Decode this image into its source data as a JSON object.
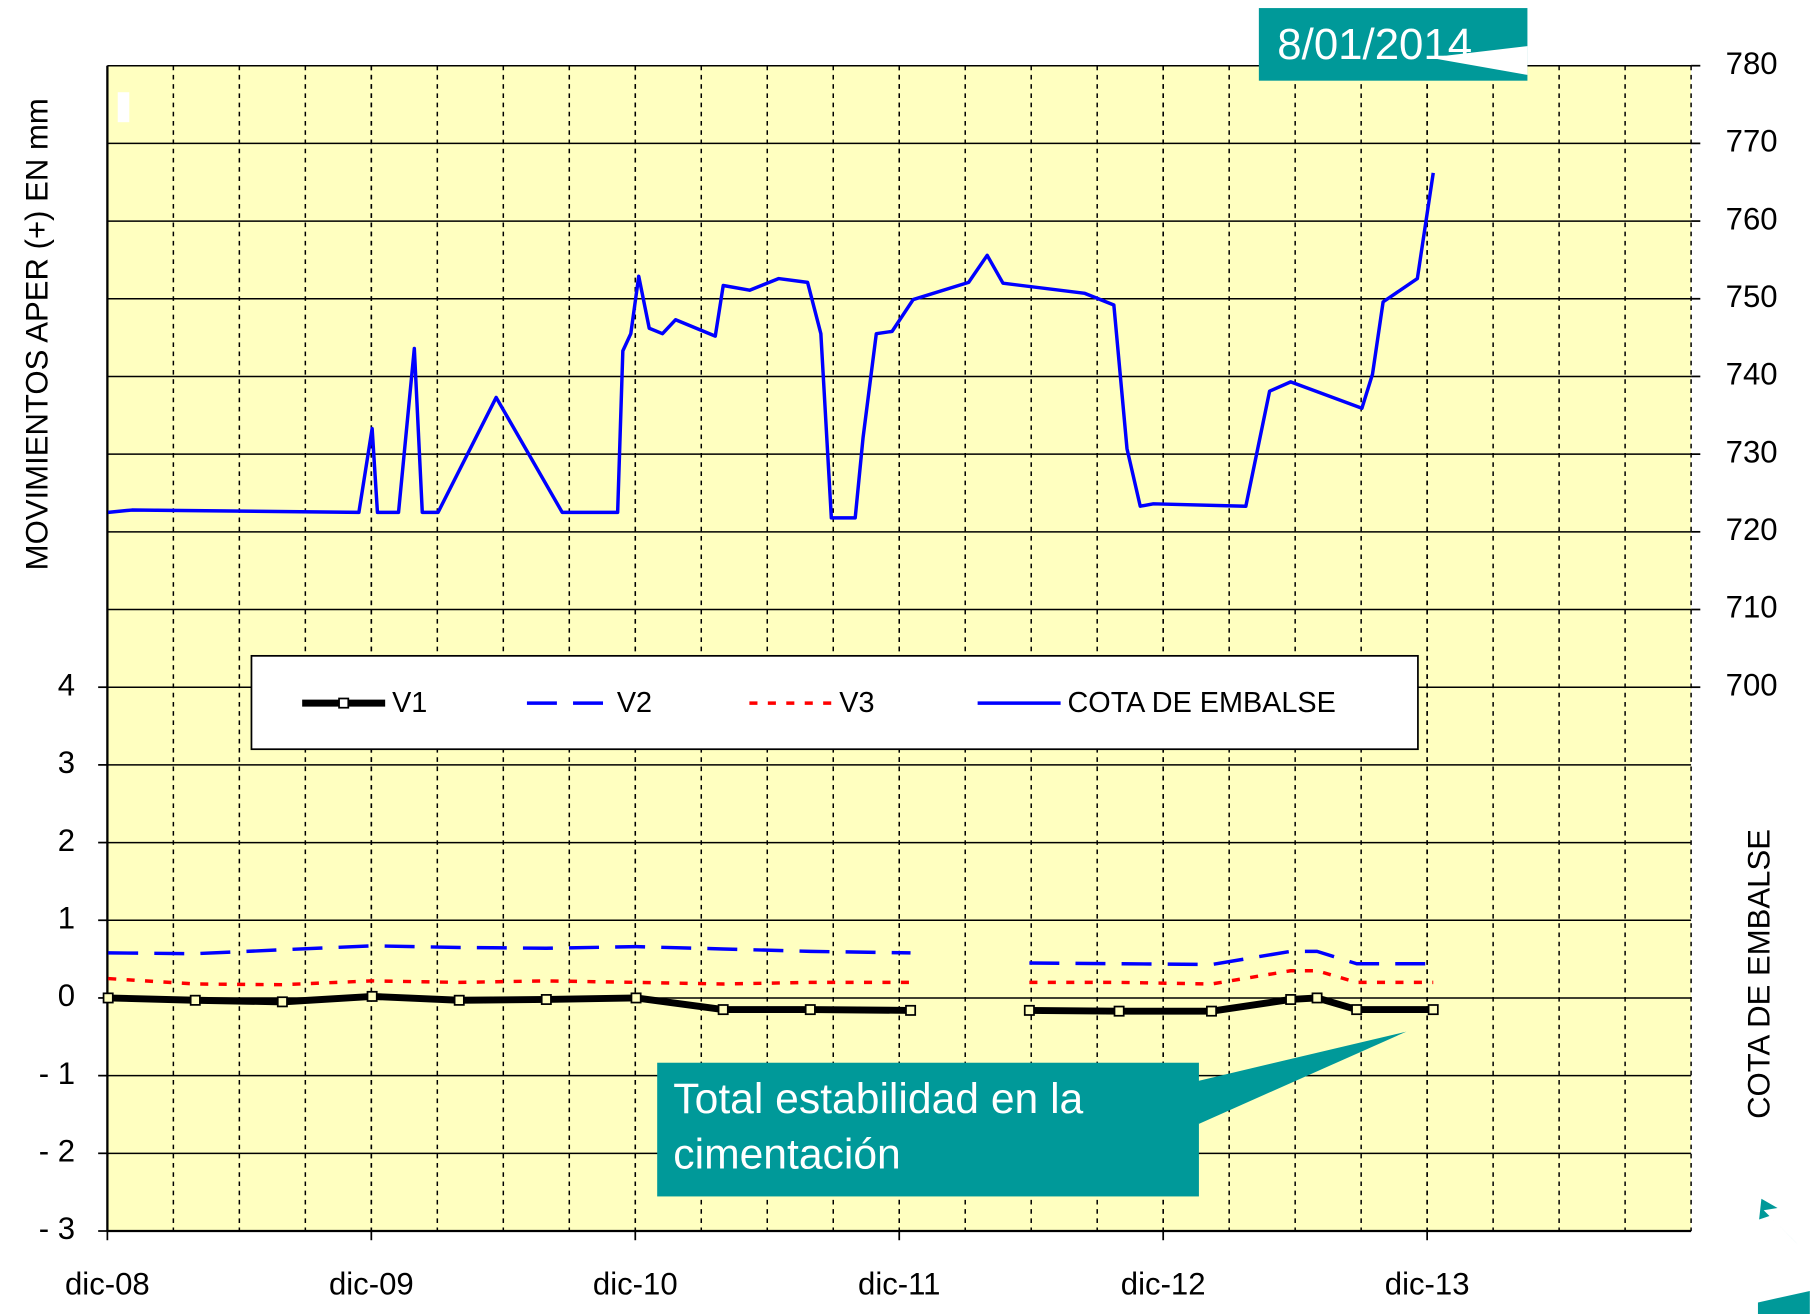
{
  "chart_data": {
    "type": "line",
    "y_label": "MOVIMIENTOS APER (+) EN mm",
    "y2_label": "COTA DE EMBALSE",
    "xlim": [
      2008.917,
      2014.917
    ],
    "xticks": [
      {
        "value": 2008.917,
        "label": "dic-08"
      },
      {
        "value": 2009.917,
        "label": "dic-09"
      },
      {
        "value": 2010.917,
        "label": "dic-10"
      },
      {
        "value": 2011.917,
        "label": "dic-11"
      },
      {
        "value": 2012.917,
        "label": "dic-12"
      },
      {
        "value": 2013.917,
        "label": "dic-13"
      }
    ],
    "minor_grid_step": 0.25,
    "ylim": [
      -3,
      12
    ],
    "yticks": [
      {
        "value": -3,
        "label": "- 3"
      },
      {
        "value": -2,
        "label": "- 2"
      },
      {
        "value": -1,
        "label": "- 1"
      },
      0,
      1,
      2,
      3,
      4
    ],
    "y2lim": [
      630,
      780
    ],
    "y2ticks": [
      700,
      710,
      720,
      730,
      740,
      750,
      760,
      770,
      780
    ],
    "grid": true,
    "plot_background": "#ffffc0",
    "legend": "inside",
    "series": [
      {
        "name": "V1",
        "color": "#000000",
        "dash": "solid",
        "width": 6,
        "marker": "square",
        "axis": "y",
        "x": [
          2008.92,
          2009.25,
          2009.58,
          2009.92,
          2010.25,
          2010.58,
          2010.92,
          2011.25,
          2011.58,
          2011.96,
          2012.2,
          2012.41,
          2012.75,
          2013.1,
          2013.4,
          2013.5,
          2013.65,
          2013.94
        ],
        "values": [
          0,
          -0.03,
          -0.05,
          0.02,
          -0.03,
          -0.02,
          0,
          -0.15,
          -0.15,
          -0.16,
          null,
          -0.16,
          -0.17,
          -0.17,
          -0.02,
          0,
          -0.15,
          -0.15
        ]
      },
      {
        "name": "V2",
        "color": "#0000ff",
        "dash": "dashed",
        "width": 3,
        "axis": "y",
        "x": [
          2008.92,
          2009.25,
          2009.58,
          2009.92,
          2010.25,
          2010.58,
          2010.92,
          2011.25,
          2011.58,
          2011.96,
          2012.2,
          2012.41,
          2012.75,
          2013.1,
          2013.4,
          2013.5,
          2013.65,
          2013.94
        ],
        "values": [
          0.58,
          0.57,
          0.62,
          0.67,
          0.65,
          0.64,
          0.66,
          0.63,
          0.6,
          0.58,
          null,
          0.45,
          0.44,
          0.43,
          0.6,
          0.6,
          0.44,
          0.44
        ]
      },
      {
        "name": "V3",
        "color": "#ff0000",
        "dash": "dotted",
        "width": 3,
        "axis": "y",
        "x": [
          2008.92,
          2009.25,
          2009.58,
          2009.92,
          2010.25,
          2010.58,
          2010.92,
          2011.25,
          2011.58,
          2011.96,
          2012.2,
          2012.41,
          2012.75,
          2013.1,
          2013.4,
          2013.5,
          2013.65,
          2013.94
        ],
        "values": [
          0.25,
          0.18,
          0.17,
          0.22,
          0.2,
          0.22,
          0.2,
          0.18,
          0.2,
          0.2,
          null,
          0.2,
          0.2,
          0.18,
          0.35,
          0.35,
          0.2,
          0.2
        ]
      },
      {
        "name": "COTA DE EMBALSE",
        "color": "#0000ff",
        "dash": "solid",
        "width": 3,
        "axis": "y2",
        "x": [
          2008.92,
          2009.01,
          2009.87,
          2009.92,
          2009.94,
          2010.02,
          2010.08,
          2010.11,
          2010.17,
          2010.39,
          2010.64,
          2010.85,
          2010.87,
          2010.9,
          2010.93,
          2010.97,
          2011.02,
          2011.07,
          2011.22,
          2011.25,
          2011.35,
          2011.46,
          2011.57,
          2011.62,
          2011.66,
          2011.75,
          2011.78,
          2011.83,
          2011.89,
          2011.97,
          2012.18,
          2012.25,
          2012.31,
          2012.62,
          2012.73,
          2012.78,
          2012.83,
          2012.88,
          2013.23,
          2013.32,
          2013.4,
          2013.67,
          2013.71,
          2013.75,
          2013.88,
          2013.94
        ],
        "values": [
          722.5,
          722.8,
          722.5,
          733.3,
          722.5,
          722.5,
          743.6,
          722.5,
          722.5,
          737.3,
          722.5,
          722.5,
          743.3,
          745.5,
          752.9,
          746.2,
          745.5,
          747.3,
          745.2,
          751.7,
          751.1,
          752.6,
          752.1,
          745.5,
          721.8,
          721.8,
          732.1,
          745.5,
          745.8,
          749.9,
          752.1,
          755.6,
          752,
          750.7,
          749.2,
          730.7,
          723.3,
          723.6,
          723.3,
          738.1,
          739.3,
          735.9,
          740.3,
          749.6,
          752.6,
          766.2
        ]
      }
    ],
    "annotations": [
      {
        "lines": [
          "8/01/2014"
        ],
        "color": "#009999"
      },
      {
        "lines": [
          "Total estabilidad  en la",
          "cimentación"
        ],
        "color": "#009999"
      }
    ]
  }
}
